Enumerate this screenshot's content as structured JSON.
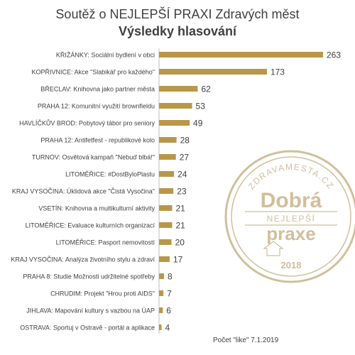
{
  "header": {
    "title": "Soutěž o NEJLEPŠÍ PRAXI Zdravých měst",
    "subtitle": "Výsledky hlasování"
  },
  "footer": {
    "note": "Počet \"like\" 7.1.2019"
  },
  "stamp": {
    "top_text": "ZDRAVAMESTA.CZ",
    "line1": "Dobrá",
    "line2": "NEJLEPŠÍ",
    "line3": "praxe",
    "year": "2018",
    "color": "#c9b48a"
  },
  "colors": {
    "bar": "#b8974a",
    "label": "#404040",
    "axis": "#bfbfbf"
  },
  "chart_data": {
    "type": "bar",
    "orientation": "horizontal",
    "title": "Soutěž o NEJLEPŠÍ PRAXI Zdravých měst",
    "subtitle": "Výsledky hlasování",
    "xlabel": "Počet \"like\" 7.1.2019",
    "categories": [
      "KŘIŽÁNKY: Sociální bydlení v obci",
      "KOPŘIVNICE: Akce \"Slabikář pro každého\"",
      "BŘECLAV: Knihovna jako partner města",
      "PRAHA 12: Komunitní využití brownfieldu",
      "HAVLÍČKŮV BROD: Pobytový tábor pro seniory",
      "PRAHA 12: Antifetfest - republikové kolo",
      "TURNOV: Osvětová kampaň \"Nebuď blbá!\"",
      "LITOMĚŘICE: #DostByloPlastu",
      "KRAJ VYSOČINA: Úklidová akce \"Čistá Vysočina\"",
      "VSETÍN: Knihovna a multikulturní aktivity",
      "LITOMĚŘICE: Evaluace kulturních organizací",
      "LITOMĚŘICE: Pasport nemovitostí",
      "KRAJ VYSOČINA: Analýza životního stylu a zdraví",
      "PRAHA 8: Studie Možnosti udržitelné spotřeby",
      "CHRUDIM: Projekt \"Hrou proti AIDS\"",
      "JIHLAVA: Mapování kultury s vazbou na ÚAP",
      "OSTRAVA: Sportuj v Ostravě - portál a aplikace"
    ],
    "values": [
      263,
      173,
      62,
      53,
      49,
      28,
      27,
      24,
      23,
      21,
      21,
      20,
      17,
      8,
      7,
      6,
      4
    ],
    "xlim": [
      0,
      263
    ],
    "grid": false,
    "legend": false
  }
}
